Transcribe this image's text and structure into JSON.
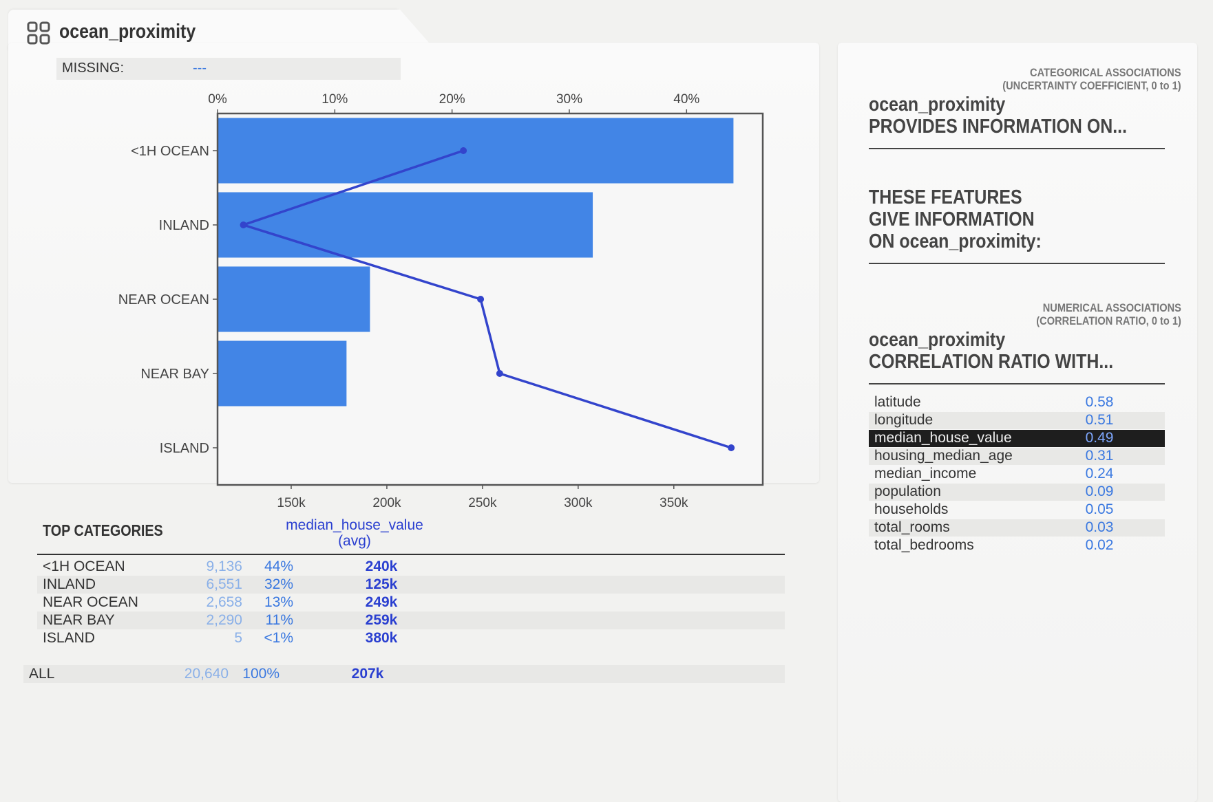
{
  "feature": {
    "title": "ocean_proximity",
    "missing_label": "MISSING:",
    "missing_value": "---"
  },
  "chart_data": {
    "type": "bar",
    "orientation": "horizontal",
    "categories": [
      "<1H OCEAN",
      "INLAND",
      "NEAR OCEAN",
      "NEAR BAY",
      "ISLAND"
    ],
    "series": [
      {
        "values": [
          44,
          32,
          13,
          11,
          0.02
        ],
        "axis": "top",
        "unit": "%"
      },
      {
        "type": "line",
        "values": [
          240000,
          125000,
          249000,
          259000,
          380000
        ],
        "axis": "bottom"
      }
    ],
    "top_axis": {
      "ticks": [
        "0%",
        "10%",
        "20%",
        "30%",
        "40%"
      ],
      "range": [
        0,
        46.5
      ]
    },
    "bottom_axis": {
      "ticks": [
        "150k",
        "200k",
        "250k",
        "300k",
        "350k"
      ],
      "range": [
        111500,
        396500
      ]
    },
    "colors": {
      "bar": "#4285e6",
      "line": "#3344cc"
    },
    "grid": false
  },
  "top_categories": {
    "heading": "TOP CATEGORIES",
    "col_head_line1": "median_house_value",
    "col_head_line2": "(avg)",
    "rows": [
      {
        "name": "<1H OCEAN",
        "count": "9,136",
        "pct": "44%",
        "avg": "240k"
      },
      {
        "name": "INLAND",
        "count": "6,551",
        "pct": "32%",
        "avg": "125k"
      },
      {
        "name": "NEAR OCEAN",
        "count": "2,658",
        "pct": "13%",
        "avg": "249k"
      },
      {
        "name": "NEAR BAY",
        "count": "2,290",
        "pct": "11%",
        "avg": "259k"
      },
      {
        "name": "ISLAND",
        "count": "5",
        "pct": "<1%",
        "avg": "380k"
      }
    ],
    "all": {
      "name": "ALL",
      "count": "20,640",
      "pct": "100%",
      "avg": "207k"
    }
  },
  "categorical": {
    "sub1": "CATEGORICAL ASSOCIATIONS",
    "sub2": "(UNCERTAINTY COEFFICIENT, 0 to 1)",
    "title1": "ocean_proximity",
    "title2": "PROVIDES INFORMATION ON...",
    "second1": "THESE FEATURES",
    "second2": "GIVE INFORMATION",
    "second3": "ON ocean_proximity:"
  },
  "numerical": {
    "sub1": "NUMERICAL ASSOCIATIONS",
    "sub2": "(CORRELATION RATIO, 0 to 1)",
    "title1": "ocean_proximity",
    "title2": "CORRELATION RATIO WITH...",
    "rows": [
      {
        "name": "latitude",
        "value": "0.58"
      },
      {
        "name": "longitude",
        "value": "0.51"
      },
      {
        "name": "median_house_value",
        "value": "0.49"
      },
      {
        "name": "housing_median_age",
        "value": "0.31"
      },
      {
        "name": "median_income",
        "value": "0.24"
      },
      {
        "name": "population",
        "value": "0.09"
      },
      {
        "name": "households",
        "value": "0.05"
      },
      {
        "name": "total_rooms",
        "value": "0.03"
      },
      {
        "name": "total_bedrooms",
        "value": "0.02"
      }
    ],
    "selected_index": 2
  }
}
